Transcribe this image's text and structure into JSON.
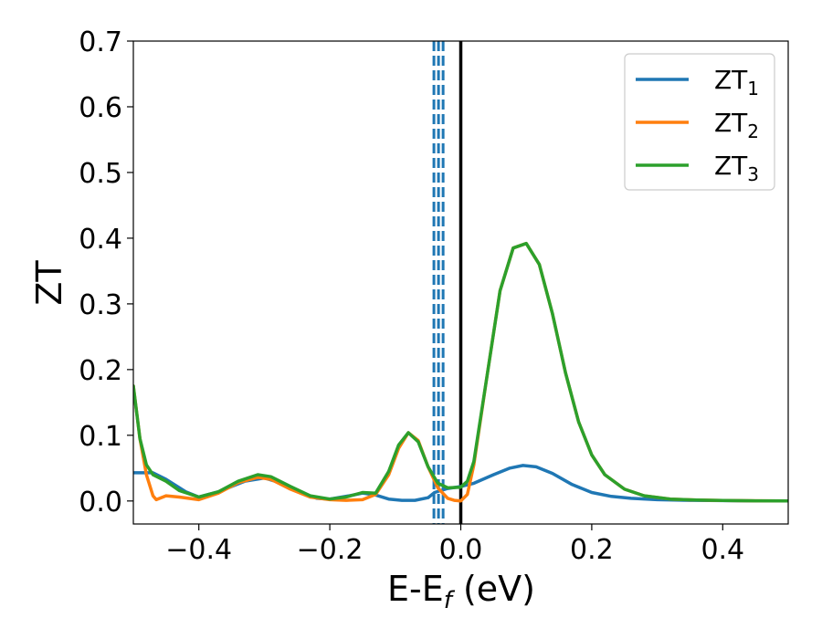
{
  "chart_data": {
    "type": "line",
    "title": "",
    "xlabel": {
      "base": "E-E",
      "sub": "f",
      "tail": " (eV)"
    },
    "ylabel": "ZT",
    "xlim": [
      -0.5,
      0.5
    ],
    "ylim": [
      -0.035,
      0.7
    ],
    "xticks": [
      -0.4,
      -0.2,
      0.0,
      0.2,
      0.4
    ],
    "xtick_labels": [
      "−0.4",
      "−0.2",
      "0.0",
      "0.2",
      "0.4"
    ],
    "yticks": [
      0.0,
      0.1,
      0.2,
      0.3,
      0.4,
      0.5,
      0.6,
      0.7
    ],
    "ytick_labels": [
      "0.0",
      "0.1",
      "0.2",
      "0.3",
      "0.4",
      "0.5",
      "0.6",
      "0.7"
    ],
    "grid": false,
    "legend_position": "top-right",
    "vertical_lines": [
      {
        "x": 0.0,
        "style": "solid",
        "color": "#000000"
      },
      {
        "x": -0.041,
        "style": "dashed",
        "color": "#1f77b4"
      },
      {
        "x": -0.034,
        "style": "dashed",
        "color": "#1f77b4"
      },
      {
        "x": -0.027,
        "style": "dashed",
        "color": "#1f77b4"
      }
    ],
    "series": [
      {
        "name": "ZT",
        "sub": "1",
        "color": "#1f77b4",
        "x": [
          -0.5,
          -0.47,
          -0.45,
          -0.42,
          -0.4,
          -0.37,
          -0.33,
          -0.3,
          -0.27,
          -0.24,
          -0.22,
          -0.2,
          -0.17,
          -0.15,
          -0.13,
          -0.11,
          -0.09,
          -0.07,
          -0.05,
          -0.04,
          -0.02,
          0.0,
          0.02,
          0.05,
          0.075,
          0.095,
          0.115,
          0.14,
          0.17,
          0.2,
          0.23,
          0.26,
          0.3,
          0.35,
          0.4,
          0.45,
          0.5
        ],
        "y": [
          0.043,
          0.043,
          0.033,
          0.014,
          0.006,
          0.014,
          0.03,
          0.035,
          0.026,
          0.011,
          0.004,
          0.003,
          0.008,
          0.012,
          0.009,
          0.003,
          0.001,
          0.001,
          0.005,
          0.013,
          0.019,
          0.022,
          0.027,
          0.04,
          0.05,
          0.054,
          0.052,
          0.042,
          0.025,
          0.013,
          0.007,
          0.004,
          0.002,
          0.001,
          0.0005,
          0.0002,
          0.0001
        ]
      },
      {
        "name": "ZT",
        "sub": "2",
        "color": "#ff7f0e",
        "x": [
          -0.5,
          -0.49,
          -0.48,
          -0.47,
          -0.465,
          -0.45,
          -0.43,
          -0.4,
          -0.37,
          -0.34,
          -0.31,
          -0.29,
          -0.26,
          -0.23,
          -0.2,
          -0.175,
          -0.15,
          -0.13,
          -0.11,
          -0.095,
          -0.08,
          -0.065,
          -0.05,
          -0.035,
          -0.02,
          -0.01,
          0.0,
          0.01,
          0.02,
          0.04,
          0.06,
          0.08,
          0.1,
          0.12,
          0.14,
          0.16,
          0.18,
          0.2,
          0.22,
          0.25,
          0.28,
          0.32,
          0.36,
          0.4,
          0.45,
          0.5
        ],
        "y": [
          0.175,
          0.095,
          0.04,
          0.008,
          0.002,
          0.008,
          0.006,
          0.002,
          0.012,
          0.028,
          0.036,
          0.033,
          0.018,
          0.006,
          0.002,
          0.001,
          0.002,
          0.01,
          0.04,
          0.08,
          0.104,
          0.092,
          0.052,
          0.02,
          0.004,
          0.001,
          0.0,
          0.01,
          0.055,
          0.19,
          0.32,
          0.385,
          0.392,
          0.36,
          0.285,
          0.195,
          0.12,
          0.07,
          0.04,
          0.018,
          0.008,
          0.003,
          0.0015,
          0.0008,
          0.0003,
          0.0001
        ]
      },
      {
        "name": "ZT",
        "sub": "3",
        "color": "#2ca02c",
        "x": [
          -0.5,
          -0.49,
          -0.48,
          -0.47,
          -0.45,
          -0.43,
          -0.4,
          -0.37,
          -0.34,
          -0.31,
          -0.29,
          -0.26,
          -0.23,
          -0.2,
          -0.175,
          -0.15,
          -0.13,
          -0.11,
          -0.095,
          -0.08,
          -0.065,
          -0.05,
          -0.035,
          -0.02,
          0.0,
          0.01,
          0.02,
          0.04,
          0.06,
          0.08,
          0.1,
          0.12,
          0.14,
          0.16,
          0.18,
          0.2,
          0.22,
          0.25,
          0.28,
          0.32,
          0.36,
          0.4,
          0.45,
          0.5
        ],
        "y": [
          0.175,
          0.095,
          0.055,
          0.04,
          0.03,
          0.016,
          0.006,
          0.014,
          0.03,
          0.04,
          0.037,
          0.022,
          0.008,
          0.003,
          0.006,
          0.013,
          0.012,
          0.045,
          0.085,
          0.104,
          0.09,
          0.052,
          0.027,
          0.02,
          0.021,
          0.03,
          0.06,
          0.19,
          0.32,
          0.385,
          0.392,
          0.36,
          0.285,
          0.195,
          0.12,
          0.07,
          0.04,
          0.018,
          0.008,
          0.003,
          0.0015,
          0.0008,
          0.0003,
          0.0001
        ]
      }
    ]
  }
}
